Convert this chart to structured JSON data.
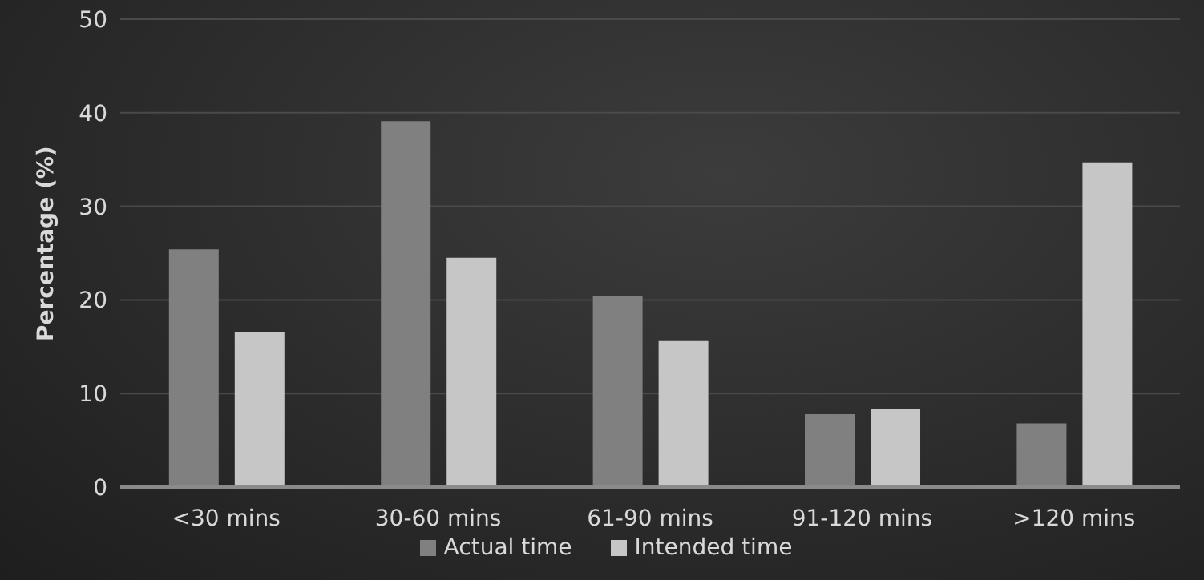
{
  "chart_data": {
    "type": "bar",
    "ylabel": "Percentage (%)",
    "categories": [
      "<30 mins",
      "30-60 mins",
      "61-90 mins",
      "91-120 mins",
      ">120 mins"
    ],
    "series": [
      {
        "name": "Actual time",
        "color": "#808080",
        "values": [
          25.4,
          39.1,
          20.4,
          7.8,
          6.8
        ]
      },
      {
        "name": "Intended time",
        "color": "#c6c6c6",
        "values": [
          16.6,
          24.5,
          15.6,
          8.3,
          34.7
        ]
      }
    ],
    "ylim": [
      0,
      50
    ],
    "yticks": [
      0,
      10,
      20,
      30,
      40,
      50
    ],
    "grid": "y",
    "legend": "bottom"
  }
}
